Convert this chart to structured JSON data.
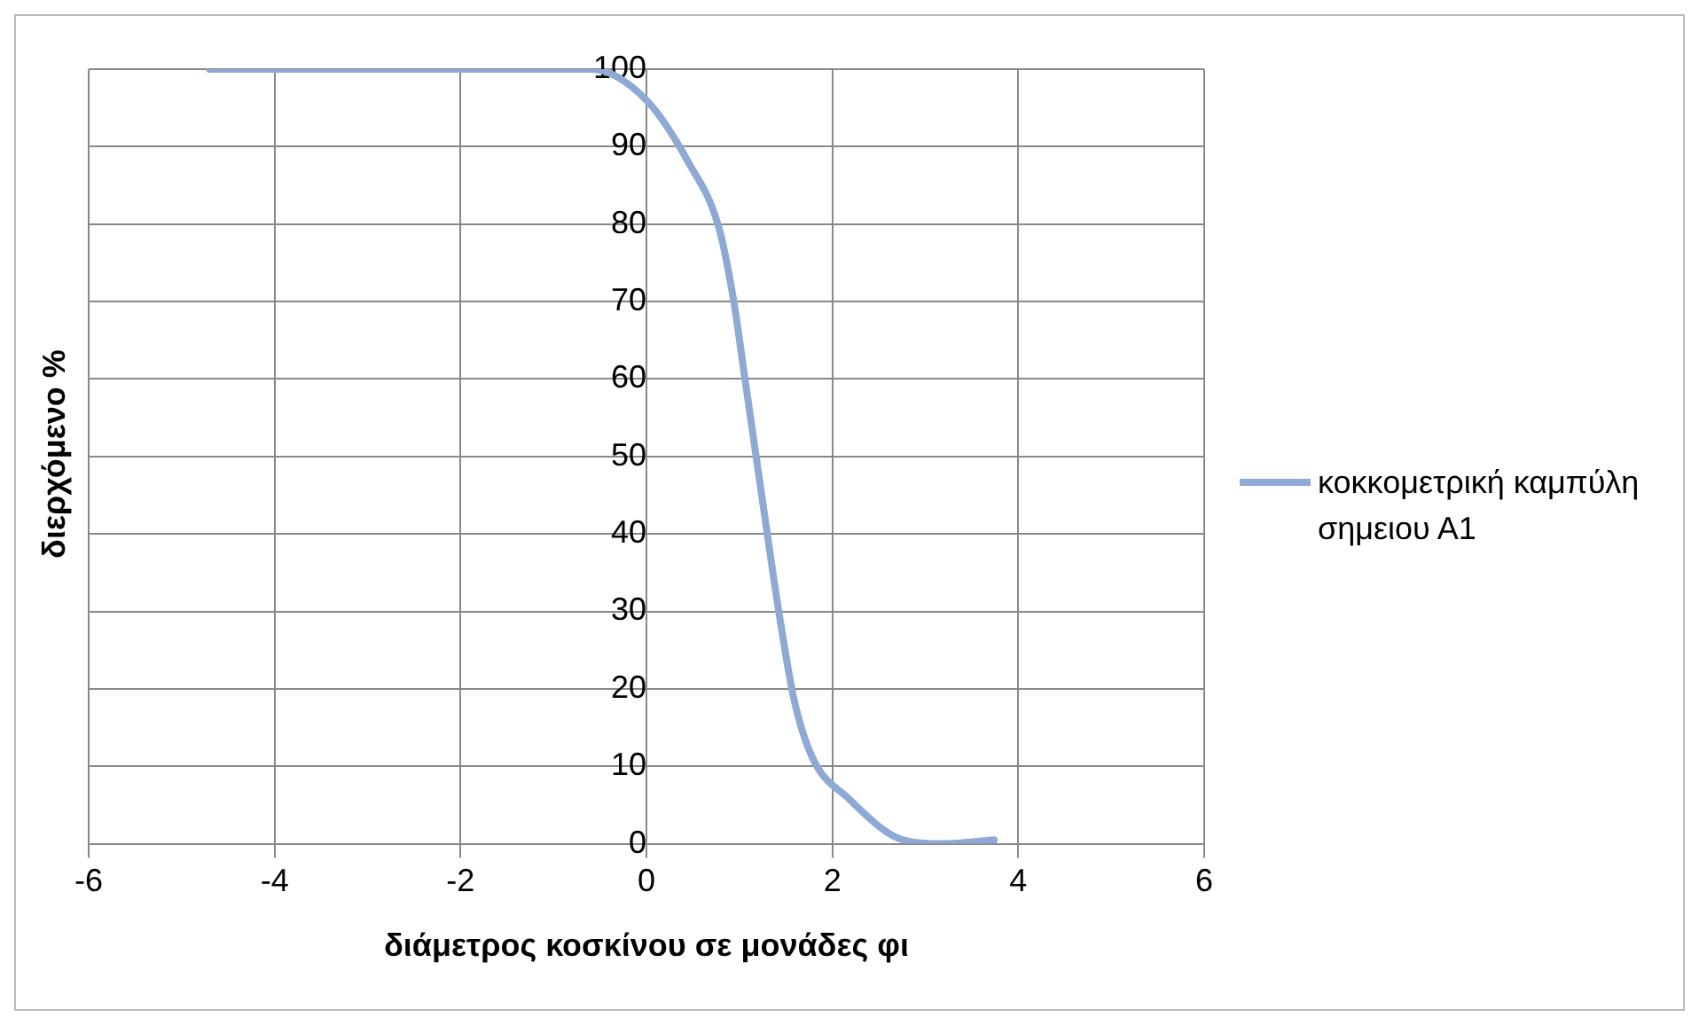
{
  "chart_data": {
    "type": "line",
    "xlabel": "διάμετρος κοσκίνου σε μονάδες φι",
    "ylabel": "διερχόμενο %",
    "series": [
      {
        "name": "κοκκομετρική καμπύλη σημειου Α1",
        "color": "#8eaad4",
        "x": [
          -4.7,
          -0.6,
          0,
          0.45,
          0.78,
          0.94,
          1.06,
          1.18,
          1.3,
          1.43,
          1.59,
          1.79,
          2.16,
          2.76,
          3.2,
          3.74
        ],
        "values": [
          100,
          100,
          96,
          88,
          79.5,
          70,
          60,
          50,
          40,
          29.5,
          18.5,
          11,
          6,
          0.5,
          0,
          0.5
        ]
      }
    ],
    "xlim": [
      -6,
      6
    ],
    "xticks": [
      -6,
      -4,
      -2,
      0,
      2,
      4,
      6
    ],
    "ylim": [
      0,
      100
    ],
    "yticks": [
      0,
      10,
      20,
      30,
      40,
      50,
      60,
      70,
      80,
      90,
      100
    ],
    "grid": true,
    "legend": "right",
    "marker": "none",
    "line_style": "solid"
  }
}
